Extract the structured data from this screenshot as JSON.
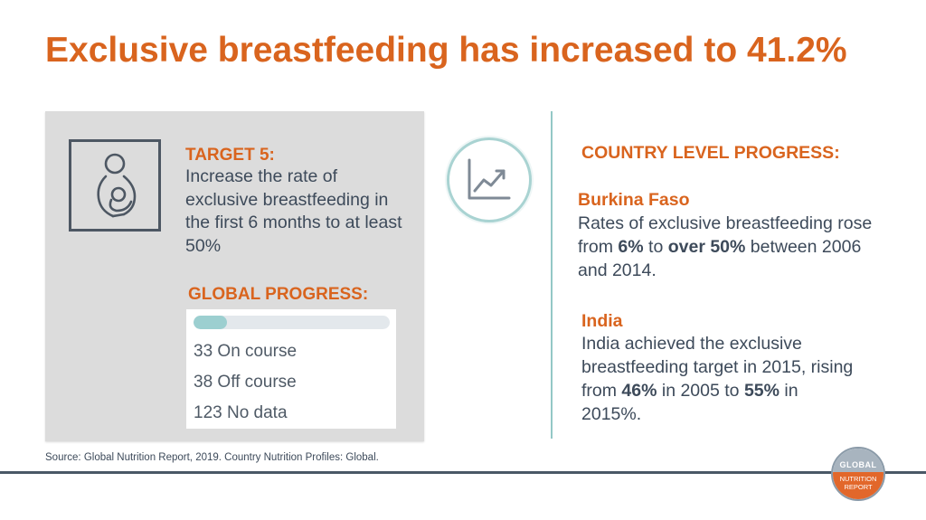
{
  "title": "Exclusive breastfeeding has increased to 41.2%",
  "target": {
    "heading": "TARGET 5:",
    "text": "Increase the rate of exclusive breastfeeding in the first 6 months to at least 50%",
    "icon": "mother-baby-icon"
  },
  "global_progress": {
    "heading": "GLOBAL PROGRESS:",
    "bar_fraction": 0.17,
    "bar_color": "#9ccfd0",
    "on_course": "33 On course",
    "off_course": "38 Off course",
    "no_data": "123 No data"
  },
  "source": "Source: Global Nutrition Report, 2019. Country Nutrition Profiles: Global.",
  "chart_icon": "line-chart-icon",
  "country": {
    "heading": "COUNTRY LEVEL PROGRESS:",
    "burkina": {
      "name": "Burkina Faso",
      "text_1": "Rates of exclusive breastfeeding rose from ",
      "bold_1": "6%",
      "text_2": " to ",
      "bold_2": "over 50%",
      "text_3": " between 2006 and 2014."
    },
    "india": {
      "name": "India",
      "text_1": "India achieved the exclusive breastfeeding target in 2015, rising from ",
      "bold_1": "46%",
      "text_2": " in 2005 to ",
      "bold_2": "55%",
      "text_3": " in 2015%."
    }
  },
  "logo": {
    "top": "GLOBAL",
    "line_1": "NUTRITION",
    "line_2": "REPORT"
  },
  "colors": {
    "accent": "#d9641e",
    "text": "#3d4a5a",
    "teal": "#93c8c6",
    "panel": "#dcdcdc"
  }
}
